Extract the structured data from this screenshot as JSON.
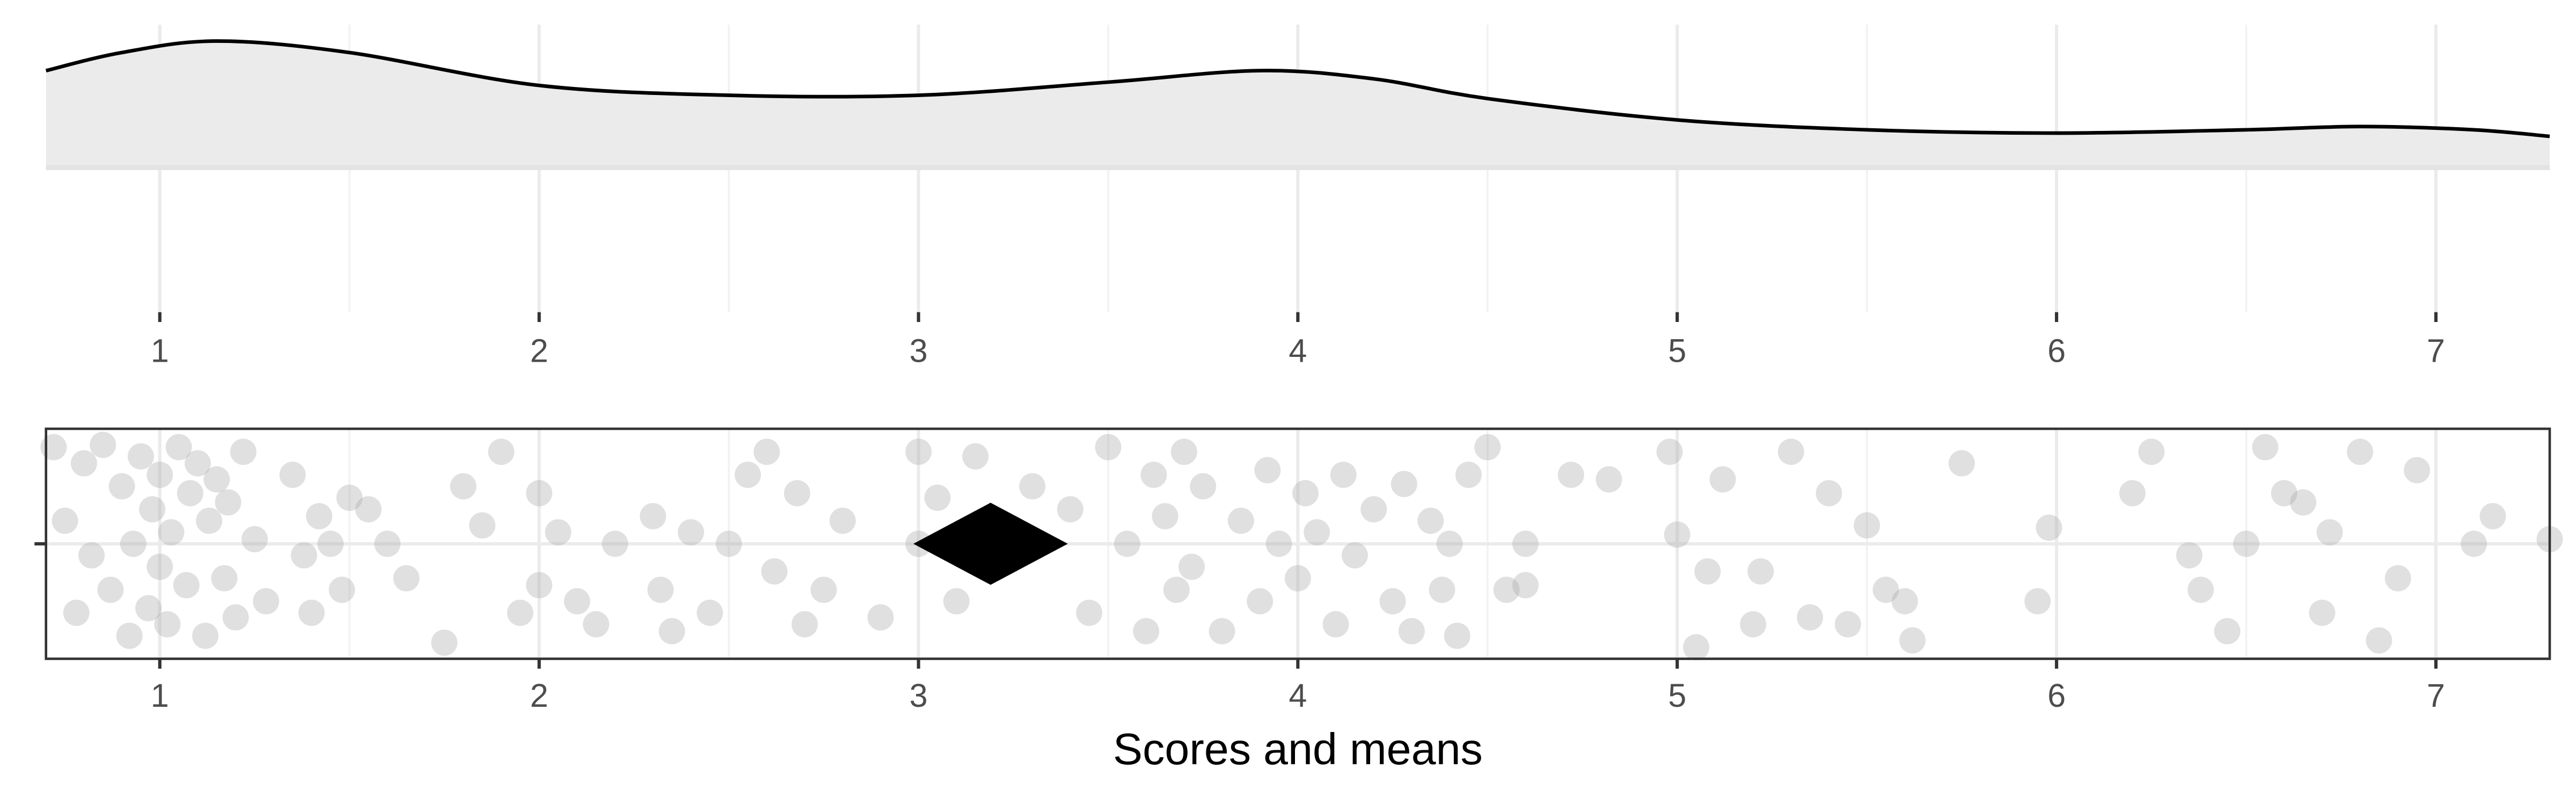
{
  "chart_data": [
    {
      "type": "area",
      "x": [
        0.7,
        0.9,
        1.15,
        1.5,
        2.0,
        2.5,
        3.0,
        3.5,
        3.9,
        4.2,
        4.5,
        5.0,
        5.5,
        6.0,
        6.5,
        6.8,
        7.1,
        7.3
      ],
      "values": [
        59,
        70,
        77,
        70,
        50,
        44,
        44,
        52,
        59,
        54,
        42,
        29,
        23,
        21,
        23,
        25,
        23,
        19
      ],
      "color": "#ebebeb",
      "line_color": "#000000",
      "xlim": [
        0.7,
        7.3
      ],
      "ylim": [
        -88,
        87
      ],
      "xticks": [
        1,
        2,
        3,
        4,
        5,
        6,
        7
      ],
      "grid": true
    },
    {
      "type": "scatter",
      "xlabel": "Scores and means",
      "x": [
        0.72,
        0.75,
        0.78,
        0.8,
        0.82,
        0.85,
        0.87,
        0.9,
        0.92,
        0.93,
        0.95,
        0.97,
        0.98,
        1.0,
        1.0,
        1.02,
        1.03,
        1.05,
        1.07,
        1.08,
        1.1,
        1.12,
        1.13,
        1.15,
        1.17,
        1.18,
        1.2,
        1.22,
        1.25,
        1.28,
        1.35,
        1.38,
        1.4,
        1.42,
        1.45,
        1.48,
        1.5,
        1.55,
        1.6,
        1.65,
        1.75,
        1.8,
        1.85,
        1.9,
        1.95,
        2.0,
        2.0,
        2.05,
        2.1,
        2.15,
        2.2,
        2.3,
        2.32,
        2.35,
        2.4,
        2.45,
        2.5,
        2.55,
        2.6,
        2.62,
        2.68,
        2.7,
        2.75,
        2.8,
        2.9,
        3.0,
        3.0,
        3.05,
        3.1,
        3.15,
        3.3,
        3.4,
        3.45,
        3.5,
        3.55,
        3.6,
        3.62,
        3.65,
        3.68,
        3.7,
        3.72,
        3.75,
        3.8,
        3.85,
        3.9,
        3.92,
        3.95,
        4.0,
        4.02,
        4.05,
        4.1,
        4.12,
        4.15,
        4.2,
        4.25,
        4.28,
        4.3,
        4.35,
        4.38,
        4.4,
        4.42,
        4.45,
        4.5,
        4.55,
        4.6,
        4.6,
        4.72,
        4.82,
        4.98,
        5.0,
        5.05,
        5.08,
        5.12,
        5.2,
        5.22,
        5.3,
        5.35,
        5.4,
        5.45,
        5.5,
        5.55,
        5.6,
        5.62,
        5.75,
        5.95,
        5.98,
        6.2,
        6.25,
        6.35,
        6.38,
        6.45,
        6.5,
        6.55,
        6.6,
        6.65,
        6.7,
        6.72,
        6.8,
        6.85,
        6.9,
        6.95,
        7.1,
        7.15,
        7.3
      ],
      "y": [
        0.42,
        0.1,
        -0.3,
        0.35,
        -0.05,
        0.43,
        -0.2,
        0.25,
        -0.4,
        0.0,
        0.38,
        -0.28,
        0.15,
        -0.1,
        0.3,
        -0.35,
        0.05,
        0.42,
        -0.18,
        0.22,
        0.35,
        -0.4,
        0.1,
        0.28,
        -0.15,
        0.18,
        -0.32,
        0.4,
        0.02,
        -0.25,
        0.3,
        -0.05,
        -0.3,
        0.12,
        0.0,
        -0.2,
        0.2,
        0.15,
        0.0,
        -0.15,
        -0.43,
        0.25,
        0.08,
        0.4,
        -0.3,
        -0.18,
        0.22,
        0.05,
        -0.25,
        -0.35,
        0.0,
        0.12,
        -0.2,
        -0.38,
        0.05,
        -0.3,
        0.0,
        0.3,
        0.4,
        -0.12,
        0.22,
        -0.35,
        -0.2,
        0.1,
        -0.32,
        0.4,
        0.0,
        0.2,
        -0.25,
        0.38,
        0.25,
        0.15,
        -0.3,
        0.42,
        0.0,
        -0.38,
        0.3,
        0.12,
        -0.2,
        0.4,
        -0.1,
        0.25,
        -0.38,
        0.1,
        -0.25,
        0.32,
        0.0,
        -0.15,
        0.22,
        0.05,
        -0.35,
        0.3,
        -0.05,
        0.15,
        -0.25,
        0.26,
        -0.38,
        0.1,
        -0.2,
        0.0,
        -0.4,
        0.3,
        0.42,
        -0.2,
        -0.18,
        0.0,
        0.3,
        0.28,
        0.4,
        0.04,
        -0.45,
        -0.12,
        0.28,
        -0.35,
        -0.12,
        0.4,
        -0.32,
        0.22,
        -0.35,
        0.08,
        -0.2,
        -0.25,
        -0.42,
        0.35,
        -0.25,
        0.07,
        0.22,
        0.4,
        -0.05,
        -0.2,
        -0.38,
        0.0,
        0.42,
        0.22,
        0.18,
        -0.3,
        0.05,
        0.4,
        -0.42,
        -0.15,
        0.32,
        0.0,
        0.12,
        0.02
      ],
      "color": "#a6a6a6",
      "means": [
        3.19
      ],
      "mean_color": "#000000",
      "xlim": [
        0.7,
        7.3
      ],
      "ylim": [
        -0.5,
        0.5
      ],
      "xticks": [
        1,
        2,
        3,
        4,
        5,
        6,
        7
      ],
      "yticks": [
        0
      ],
      "grid": true
    }
  ]
}
